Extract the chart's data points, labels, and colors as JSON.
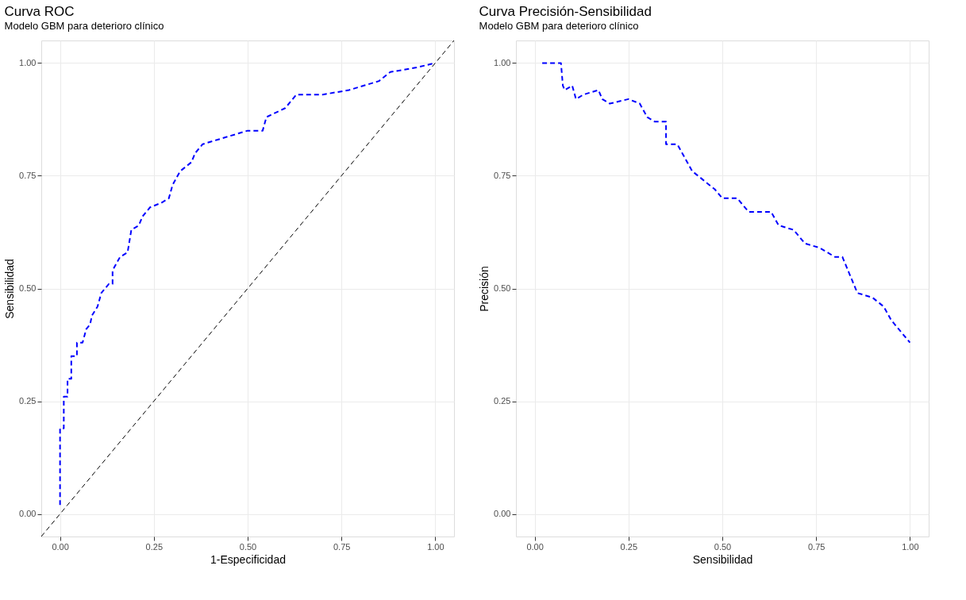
{
  "chart_data": [
    {
      "type": "line",
      "title": "Curva ROC",
      "subtitle": "Modelo GBM para deterioro clínico",
      "xlabel": "1-Especificidad",
      "ylabel": "Sensibilidad",
      "xlim": [
        -0.05,
        1.05
      ],
      "ylim": [
        -0.05,
        1.05
      ],
      "xticks": [
        {
          "value": 0,
          "label": "0.00"
        },
        {
          "value": 0.25,
          "label": "0.25"
        },
        {
          "value": 0.5,
          "label": "0.50"
        },
        {
          "value": 0.75,
          "label": "0.75"
        },
        {
          "value": 1,
          "label": "1.00"
        }
      ],
      "yticks": [
        {
          "value": 0,
          "label": "0.00"
        },
        {
          "value": 0.25,
          "label": "0.25"
        },
        {
          "value": 0.5,
          "label": "0.50"
        },
        {
          "value": 0.75,
          "label": "0.75"
        },
        {
          "value": 1,
          "label": "1.00"
        }
      ],
      "grid": true,
      "series": [
        {
          "color": "#0000ff",
          "line_style": "dashed",
          "x": [
            0,
            0,
            0.01,
            0.01,
            0.02,
            0.02,
            0.03,
            0.03,
            0.045,
            0.045,
            0.06,
            0.07,
            0.08,
            0.085,
            0.1,
            0.11,
            0.13,
            0.14,
            0.14,
            0.16,
            0.18,
            0.19,
            0.21,
            0.22,
            0.24,
            0.27,
            0.29,
            0.3,
            0.32,
            0.35,
            0.36,
            0.38,
            0.42,
            0.5,
            0.54,
            0.55,
            0.6,
            0.63,
            0.7,
            0.77,
            0.81,
            0.85,
            0.88,
            0.95,
            1.0
          ],
          "values": [
            0.02,
            0.19,
            0.19,
            0.26,
            0.26,
            0.3,
            0.3,
            0.35,
            0.35,
            0.38,
            0.38,
            0.41,
            0.42,
            0.44,
            0.46,
            0.49,
            0.51,
            0.51,
            0.54,
            0.57,
            0.58,
            0.63,
            0.64,
            0.66,
            0.68,
            0.69,
            0.7,
            0.73,
            0.76,
            0.78,
            0.8,
            0.82,
            0.83,
            0.85,
            0.85,
            0.88,
            0.9,
            0.93,
            0.93,
            0.94,
            0.95,
            0.96,
            0.98,
            0.99,
            1.0
          ]
        },
        {
          "color": "#000000",
          "line_style": "dashed",
          "x": [
            -0.05,
            1.05
          ],
          "values": [
            -0.05,
            1.05
          ]
        }
      ]
    },
    {
      "type": "line",
      "title": "Curva Precisión-Sensibilidad",
      "subtitle": "Modelo GBM para deterioro clínico",
      "xlabel": "Sensibilidad",
      "ylabel": "Precisión",
      "xlim": [
        -0.05,
        1.05
      ],
      "ylim": [
        -0.05,
        1.05
      ],
      "xticks": [
        {
          "value": 0,
          "label": "0.00"
        },
        {
          "value": 0.25,
          "label": "0.25"
        },
        {
          "value": 0.5,
          "label": "0.50"
        },
        {
          "value": 0.75,
          "label": "0.75"
        },
        {
          "value": 1,
          "label": "1.00"
        }
      ],
      "yticks": [
        {
          "value": 0,
          "label": "0.00"
        },
        {
          "value": 0.25,
          "label": "0.25"
        },
        {
          "value": 0.5,
          "label": "0.50"
        },
        {
          "value": 0.75,
          "label": "0.75"
        },
        {
          "value": 1,
          "label": "1.00"
        }
      ],
      "grid": true,
      "series": [
        {
          "color": "#0000ff",
          "line_style": "dashed",
          "x": [
            0.02,
            0.07,
            0.075,
            0.08,
            0.1,
            0.11,
            0.13,
            0.17,
            0.18,
            0.2,
            0.25,
            0.28,
            0.3,
            0.32,
            0.35,
            0.35,
            0.38,
            0.4,
            0.42,
            0.45,
            0.48,
            0.5,
            0.54,
            0.57,
            0.63,
            0.65,
            0.69,
            0.72,
            0.76,
            0.8,
            0.82,
            0.85,
            0.86,
            0.9,
            0.93,
            0.95,
            0.98,
            1.0
          ],
          "values": [
            1.0,
            1.0,
            0.95,
            0.94,
            0.95,
            0.92,
            0.93,
            0.94,
            0.92,
            0.91,
            0.92,
            0.91,
            0.88,
            0.87,
            0.87,
            0.82,
            0.82,
            0.79,
            0.76,
            0.74,
            0.72,
            0.7,
            0.7,
            0.67,
            0.67,
            0.64,
            0.63,
            0.6,
            0.59,
            0.57,
            0.57,
            0.51,
            0.49,
            0.48,
            0.46,
            0.43,
            0.4,
            0.38
          ]
        }
      ]
    }
  ]
}
